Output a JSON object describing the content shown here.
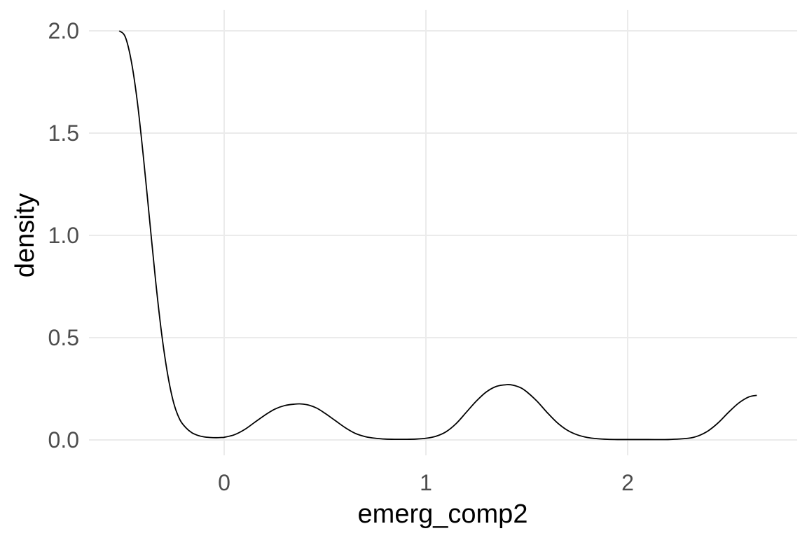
{
  "chart_data": {
    "type": "line",
    "title": "",
    "xlabel": "emerg_comp2",
    "ylabel": "density",
    "xlim": [
      -0.6,
      2.8
    ],
    "ylim": [
      -0.08,
      2.1
    ],
    "x_ticks": [
      0,
      1,
      2
    ],
    "x_tick_labels": [
      "0",
      "1",
      "2"
    ],
    "y_ticks": [
      0.0,
      0.5,
      1.0,
      1.5,
      2.0
    ],
    "y_tick_labels": [
      "0.0",
      "0.5",
      "1.0",
      "1.5",
      "2.0"
    ],
    "grid": true,
    "legend": "none",
    "line_color": "#000000",
    "series": [
      {
        "x": [
          -0.52,
          -0.49,
          -0.46,
          -0.43,
          -0.4,
          -0.37,
          -0.34,
          -0.31,
          -0.28,
          -0.25,
          -0.22,
          -0.19,
          -0.16,
          -0.13,
          -0.1,
          -0.07,
          -0.04,
          -0.01,
          0.0,
          0.05,
          0.1,
          0.15,
          0.2,
          0.25,
          0.3,
          0.35,
          0.38,
          0.42,
          0.46,
          0.5,
          0.55,
          0.6,
          0.65,
          0.7,
          0.75,
          0.8,
          0.85,
          0.9,
          0.95,
          1.0,
          1.05,
          1.1,
          1.15,
          1.2,
          1.25,
          1.3,
          1.35,
          1.4,
          1.43,
          1.47,
          1.5,
          1.55,
          1.6,
          1.65,
          1.7,
          1.75,
          1.8,
          1.85,
          1.9,
          1.95,
          2.0,
          2.1,
          2.2,
          2.3,
          2.35,
          2.4,
          2.45,
          2.5,
          2.55,
          2.6,
          2.64
        ],
        "y": [
          2.0,
          1.97,
          1.85,
          1.65,
          1.38,
          1.08,
          0.78,
          0.52,
          0.32,
          0.18,
          0.1,
          0.06,
          0.035,
          0.022,
          0.015,
          0.012,
          0.011,
          0.012,
          0.013,
          0.025,
          0.05,
          0.085,
          0.12,
          0.15,
          0.168,
          0.175,
          0.176,
          0.17,
          0.155,
          0.13,
          0.095,
          0.06,
          0.032,
          0.016,
          0.008,
          0.004,
          0.003,
          0.003,
          0.004,
          0.008,
          0.018,
          0.04,
          0.08,
          0.135,
          0.19,
          0.235,
          0.262,
          0.27,
          0.268,
          0.255,
          0.235,
          0.19,
          0.135,
          0.085,
          0.048,
          0.025,
          0.012,
          0.006,
          0.003,
          0.002,
          0.002,
          0.002,
          0.002,
          0.008,
          0.02,
          0.045,
          0.085,
          0.135,
          0.18,
          0.21,
          0.218
        ]
      }
    ]
  }
}
